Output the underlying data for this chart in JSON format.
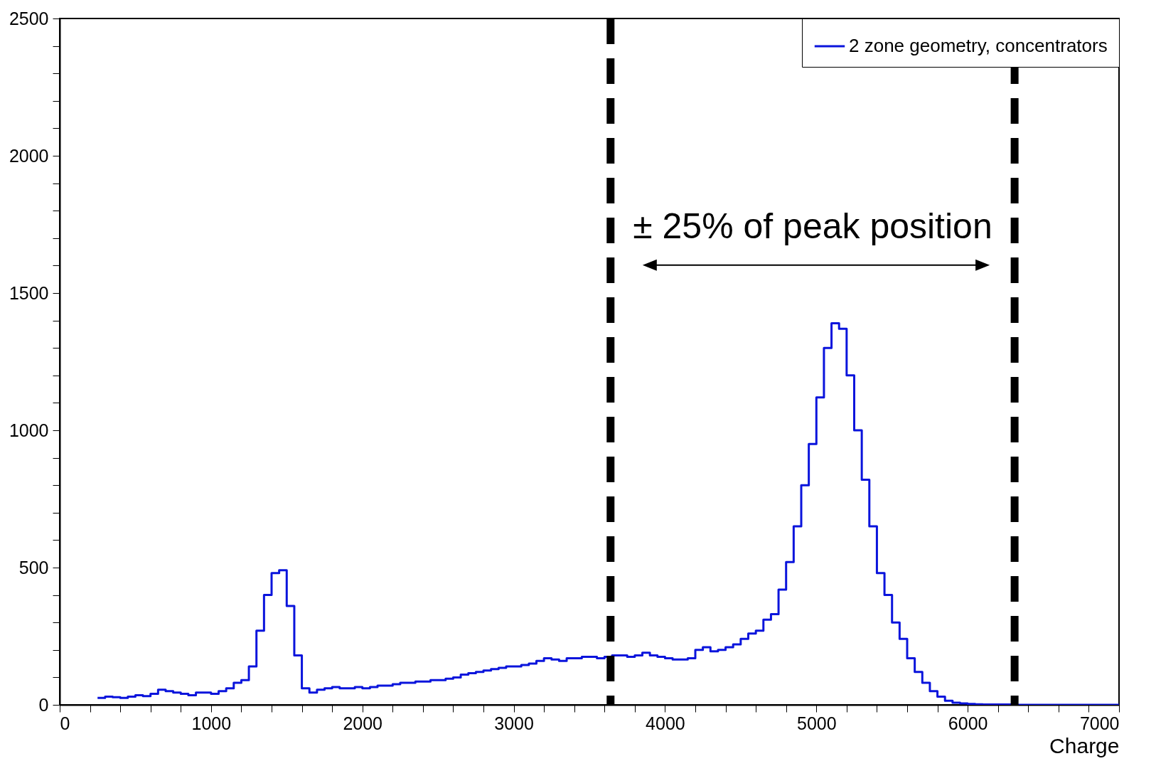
{
  "chart_data": {
    "type": "histogram",
    "xlabel": "Charge",
    "bins": [
      250,
      300,
      350,
      400,
      450,
      500,
      550,
      600,
      650,
      700,
      750,
      800,
      850,
      900,
      950,
      1000,
      1050,
      1100,
      1150,
      1200,
      1250,
      1300,
      1350,
      1400,
      1450,
      1500,
      1550,
      1600,
      1650,
      1700,
      1750,
      1800,
      1850,
      1900,
      1950,
      2000,
      2050,
      2100,
      2150,
      2200,
      2250,
      2300,
      2350,
      2400,
      2450,
      2500,
      2550,
      2600,
      2650,
      2700,
      2750,
      2800,
      2850,
      2900,
      2950,
      3000,
      3050,
      3100,
      3150,
      3200,
      3250,
      3300,
      3350,
      3400,
      3450,
      3500,
      3550,
      3600,
      3650,
      3700,
      3750,
      3800,
      3850,
      3900,
      3950,
      4000,
      4050,
      4100,
      4150,
      4200,
      4250,
      4300,
      4350,
      4400,
      4450,
      4500,
      4550,
      4600,
      4650,
      4700,
      4750,
      4800,
      4850,
      4900,
      4950,
      5000,
      5050,
      5100,
      5150,
      5200,
      5250,
      5300,
      5350,
      5400,
      5450,
      5500,
      5550,
      5600,
      5650,
      5700,
      5750,
      5800,
      5850,
      5900,
      5950,
      6000,
      6050,
      6100,
      6150,
      6200,
      6250,
      6300,
      6350,
      6400,
      6450,
      6500,
      6550,
      6600,
      6650,
      6700,
      6750,
      6800,
      6850,
      6900,
      6950,
      7000
    ],
    "series": [
      {
        "name": "2 zone geometry, concentrators",
        "color": "#0a14dc",
        "values": [
          25,
          30,
          28,
          25,
          30,
          35,
          32,
          40,
          55,
          50,
          45,
          40,
          35,
          45,
          45,
          40,
          50,
          60,
          80,
          90,
          140,
          270,
          400,
          480,
          490,
          360,
          180,
          60,
          45,
          55,
          60,
          65,
          60,
          60,
          65,
          60,
          65,
          70,
          70,
          75,
          80,
          80,
          85,
          85,
          90,
          90,
          95,
          100,
          110,
          115,
          120,
          125,
          130,
          135,
          140,
          140,
          145,
          150,
          160,
          170,
          165,
          160,
          170,
          170,
          175,
          175,
          170,
          175,
          180,
          180,
          175,
          180,
          190,
          180,
          175,
          170,
          165,
          165,
          170,
          200,
          210,
          195,
          200,
          210,
          220,
          240,
          260,
          270,
          310,
          330,
          420,
          520,
          650,
          800,
          950,
          1120,
          1300,
          1390,
          1370,
          1200,
          1000,
          820,
          650,
          480,
          400,
          300,
          240,
          170,
          120,
          80,
          50,
          30,
          15,
          8,
          5,
          3,
          2,
          1,
          1,
          1,
          1,
          0,
          0,
          0,
          0,
          0,
          0,
          0,
          0,
          0,
          0,
          0,
          0,
          0,
          0
        ]
      }
    ],
    "xlim": [
      0,
      7000
    ],
    "ylim": [
      0,
      2500
    ],
    "xticks": [
      0,
      {
        "value": 200,
        "label": null
      },
      {
        "value": 400,
        "label": null
      },
      {
        "value": 600,
        "label": null
      },
      {
        "value": 800,
        "label": null
      },
      1000,
      {
        "value": 1200,
        "label": null
      },
      {
        "value": 1400,
        "label": null
      },
      {
        "value": 1600,
        "label": null
      },
      {
        "value": 1800,
        "label": null
      },
      2000,
      {
        "value": 2200,
        "label": null
      },
      {
        "value": 2400,
        "label": null
      },
      {
        "value": 2600,
        "label": null
      },
      {
        "value": 2800,
        "label": null
      },
      3000,
      {
        "value": 3200,
        "label": null
      },
      {
        "value": 3400,
        "label": null
      },
      {
        "value": 3600,
        "label": null
      },
      {
        "value": 3800,
        "label": null
      },
      4000,
      {
        "value": 4200,
        "label": null
      },
      {
        "value": 4400,
        "label": null
      },
      {
        "value": 4600,
        "label": null
      },
      {
        "value": 4800,
        "label": null
      },
      5000,
      {
        "value": 5200,
        "label": null
      },
      {
        "value": 5400,
        "label": null
      },
      {
        "value": 5600,
        "label": null
      },
      {
        "value": 5800,
        "label": null
      },
      6000,
      {
        "value": 6200,
        "label": null
      },
      {
        "value": 6400,
        "label": null
      },
      {
        "value": 6600,
        "label": null
      },
      {
        "value": 6800,
        "label": null
      },
      7000
    ],
    "yticks": [
      0,
      {
        "value": 100,
        "label": null
      },
      {
        "value": 200,
        "label": null
      },
      {
        "value": 300,
        "label": null
      },
      {
        "value": 400,
        "label": null
      },
      500,
      {
        "value": 600,
        "label": null
      },
      {
        "value": 700,
        "label": null
      },
      {
        "value": 800,
        "label": null
      },
      {
        "value": 900,
        "label": null
      },
      1000,
      {
        "value": 1100,
        "label": null
      },
      {
        "value": 1200,
        "label": null
      },
      {
        "value": 1300,
        "label": null
      },
      {
        "value": 1400,
        "label": null
      },
      1500,
      {
        "value": 1600,
        "label": null
      },
      {
        "value": 1700,
        "label": null
      },
      {
        "value": 1800,
        "label": null
      },
      {
        "value": 1900,
        "label": null
      },
      2000,
      {
        "value": 2100,
        "label": null
      },
      {
        "value": 2200,
        "label": null
      },
      {
        "value": 2300,
        "label": null
      },
      {
        "value": 2400,
        "label": null
      },
      2500
    ],
    "ref_lines": [
      {
        "axis": "x",
        "value": 3640,
        "color": "#000000",
        "line_style": "dashed"
      },
      {
        "axis": "x",
        "value": 6310,
        "color": "#000000",
        "line_style": "dashed"
      }
    ],
    "annotations": [
      "± 25% of peak position"
    ],
    "legend": "top right",
    "grid": false
  }
}
